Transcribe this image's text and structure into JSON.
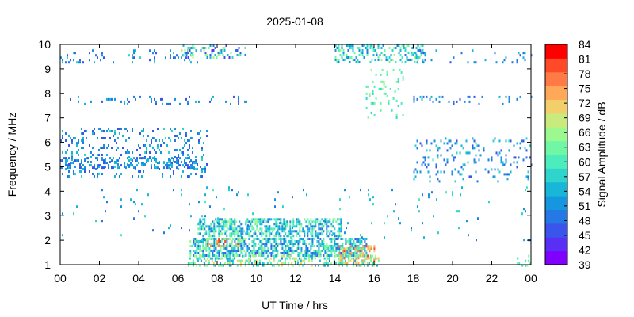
{
  "chart_data": {
    "type": "heatmap",
    "title": "2025-01-08",
    "xlabel": "UT Time / hrs",
    "ylabel": "Frequency / MHz",
    "colorbar_label": "Signal Amplitude / dB",
    "x_ticks": [
      "00",
      "02",
      "04",
      "06",
      "08",
      "10",
      "12",
      "14",
      "16",
      "18",
      "20",
      "22",
      "00"
    ],
    "xlim": [
      0,
      24
    ],
    "ylim": [
      1,
      10
    ],
    "y_ticks": [
      1,
      2,
      3,
      4,
      5,
      6,
      7,
      8,
      9,
      10
    ],
    "colorbar": {
      "range": [
        39,
        84
      ],
      "ticks": [
        39,
        42,
        45,
        48,
        51,
        54,
        57,
        60,
        63,
        66,
        69,
        72,
        75,
        78,
        81,
        84
      ],
      "colors": [
        "#7f00ff",
        "#5a2ff5",
        "#3a55ec",
        "#2479e4",
        "#1696df",
        "#18b6d9",
        "#2fd4cc",
        "#4cecbd",
        "#6ff7a6",
        "#9cf990",
        "#c9ea7c",
        "#f2cf6b",
        "#ffa85a",
        "#ff7a45",
        "#ff4a2a",
        "#ff0000"
      ]
    },
    "grid": false,
    "regions": [
      {
        "t": [
          0.0,
          7.0
        ],
        "f": [
          9.3,
          9.8
        ],
        "amp": [
          45,
          58
        ],
        "density": 0.12
      },
      {
        "t": [
          0.0,
          9.5
        ],
        "f": [
          7.6,
          7.9
        ],
        "amp": [
          45,
          55
        ],
        "density": 0.1
      },
      {
        "t": [
          0.0,
          7.5
        ],
        "f": [
          4.6,
          6.6
        ],
        "amp": [
          45,
          57
        ],
        "density": 0.15
      },
      {
        "t": [
          0.0,
          7.0
        ],
        "f": [
          5.0,
          5.4
        ],
        "amp": [
          45,
          55
        ],
        "density": 0.3
      },
      {
        "t": [
          6.0,
          9.5
        ],
        "f": [
          9.5,
          10.0
        ],
        "amp": [
          42,
          70
        ],
        "density": 0.25
      },
      {
        "t": [
          14.0,
          18.5
        ],
        "f": [
          9.3,
          10.0
        ],
        "amp": [
          48,
          66
        ],
        "density": 0.35
      },
      {
        "t": [
          15.5,
          17.5
        ],
        "f": [
          7.0,
          9.0
        ],
        "amp": [
          57,
          66
        ],
        "density": 0.1
      },
      {
        "t": [
          18.0,
          24.0
        ],
        "f": [
          7.6,
          7.9
        ],
        "amp": [
          45,
          55
        ],
        "density": 0.1
      },
      {
        "t": [
          18.0,
          24.0
        ],
        "f": [
          4.4,
          6.2
        ],
        "amp": [
          45,
          57
        ],
        "density": 0.12
      },
      {
        "t": [
          18.0,
          24.0
        ],
        "f": [
          9.3,
          9.8
        ],
        "amp": [
          45,
          55
        ],
        "density": 0.06
      },
      {
        "t": [
          7.0,
          14.3
        ],
        "f": [
          2.2,
          2.9
        ],
        "amp": [
          48,
          66
        ],
        "density": 0.55
      },
      {
        "t": [
          6.6,
          15.6
        ],
        "f": [
          1.4,
          2.1
        ],
        "amp": [
          45,
          66
        ],
        "density": 0.6
      },
      {
        "t": [
          6.5,
          16.2
        ],
        "f": [
          1.0,
          1.4
        ],
        "amp": [
          50,
          72
        ],
        "density": 0.4
      },
      {
        "t": [
          7.4,
          9.2
        ],
        "f": [
          1.8,
          2.1
        ],
        "amp": [
          60,
          81
        ],
        "density": 0.45
      },
      {
        "t": [
          14.2,
          16.0
        ],
        "f": [
          1.1,
          1.8
        ],
        "amp": [
          60,
          81
        ],
        "density": 0.45
      },
      {
        "t": [
          23.2,
          24.0
        ],
        "f": [
          1.0,
          1.4
        ],
        "amp": [
          55,
          66
        ],
        "density": 0.25
      },
      {
        "t": [
          0.0,
          24.0
        ],
        "f": [
          2.0,
          4.2
        ],
        "amp": [
          48,
          60
        ],
        "density": 0.02
      }
    ]
  }
}
